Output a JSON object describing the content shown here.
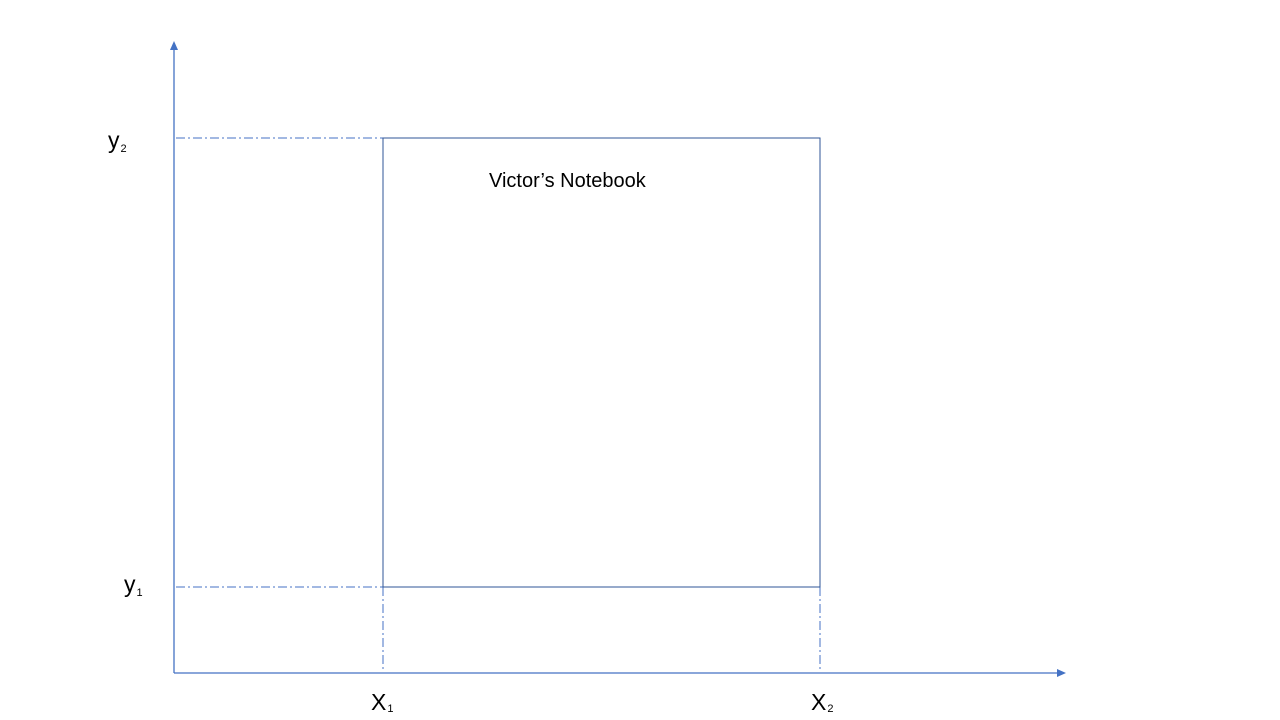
{
  "diagram": {
    "box_label": "Victor’s Notebook",
    "y_labels": {
      "y2": {
        "main": "y",
        "sub": "2"
      },
      "y1": {
        "main": "y",
        "sub": "1"
      }
    },
    "x_labels": {
      "x1": {
        "main": "X",
        "sub": "1"
      },
      "x2": {
        "main": "X",
        "sub": "2"
      }
    },
    "colors": {
      "axis": "#4472c4",
      "frame": "#2f5597",
      "text": "#000000",
      "background": "#ffffff"
    }
  }
}
